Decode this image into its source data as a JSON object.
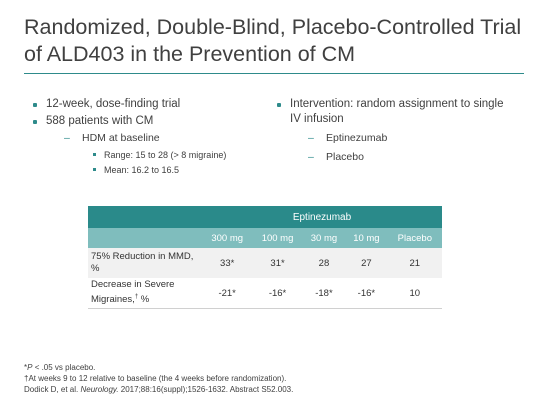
{
  "title": {
    "line1": "Randomized, Double-Blind, Placebo-Controlled Trial",
    "line2": "of ALD403 in the Prevention of CM"
  },
  "left": {
    "bullet1": "12-week, dose-finding trial",
    "bullet2": "588 patients with CM",
    "sub1": "HDM at baseline",
    "subsub1": "Range: 15 to 28 (> 8 migraine)",
    "subsub2": "Mean: 16.2 to 16.5"
  },
  "right": {
    "bullet1": "Intervention: random assignment to single IV infusion",
    "sub1": "Eptinezumab",
    "sub2": "Placebo"
  },
  "table": {
    "group_header": "Eptinezumab",
    "columns": [
      "300 mg",
      "100 mg",
      "30 mg",
      "10 mg",
      "Placebo"
    ],
    "rows": [
      {
        "label": "75% Reduction in MMD, %",
        "values": [
          "33*",
          "31*",
          "28",
          "27",
          "21"
        ]
      },
      {
        "label_main": "Decrease in Severe Migraines,",
        "label_sup": "†",
        "label_tail": " %",
        "values": [
          "-21*",
          "-16*",
          "-18*",
          "-16*",
          "10"
        ]
      }
    ]
  },
  "footnotes": {
    "fn1_p": "P",
    "fn1_rest": " < .05 vs placebo.",
    "fn2": "†At weeks 9 to 12 relative to baseline (the 4 weeks before randomization).",
    "fn3_pre": "Dodick D, et al. ",
    "fn3_journal": "Neurology.",
    "fn3_post": " 2017;88:16(suppl);1526-1632. Abstract S52.003."
  },
  "colors": {
    "accent": "#2a8a8a",
    "subheader": "#7fbdbd",
    "row_shade": "#f1f1f1"
  }
}
